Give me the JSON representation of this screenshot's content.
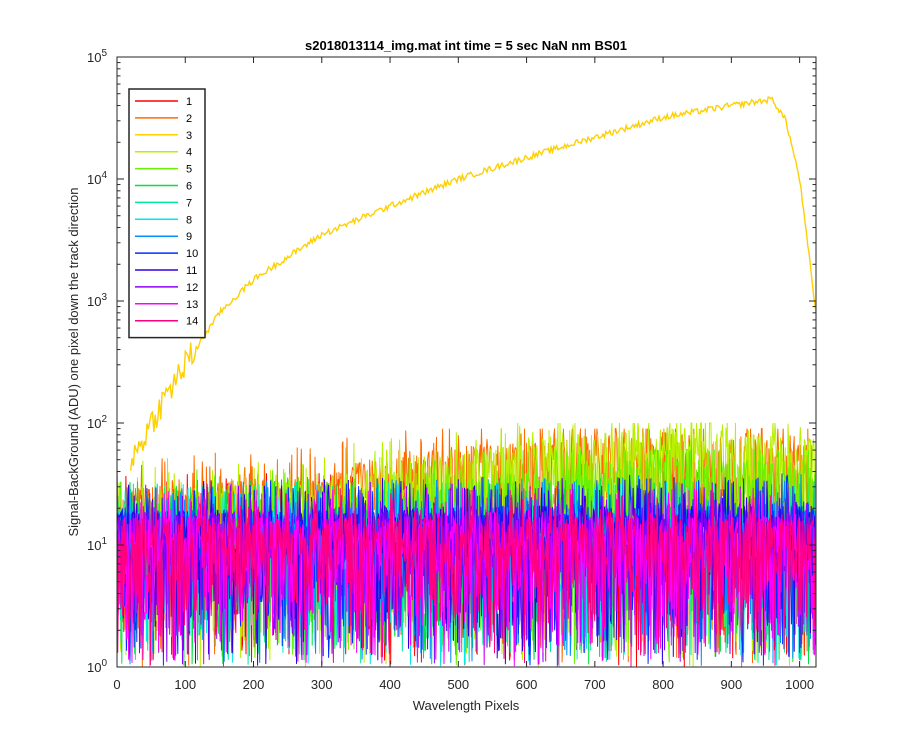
{
  "chart_data": {
    "type": "line",
    "title": "s2018013114_img.mat int time = 5 sec  NaN nm BS01",
    "xlabel": "Wavelength Pixels",
    "ylabel": "Signal-BackGround (ADU) one pixel down the track direction",
    "xlim": [
      0,
      1024
    ],
    "ylim": [
      1,
      100000
    ],
    "yscale": "log",
    "grid": false,
    "legend_position": "top-left",
    "x_ticks": [
      0,
      100,
      200,
      300,
      400,
      500,
      600,
      700,
      800,
      900,
      1000
    ],
    "y_ticks": [
      {
        "value": 1,
        "base": "10",
        "exp": "0"
      },
      {
        "value": 10,
        "base": "10",
        "exp": "1"
      },
      {
        "value": 100,
        "base": "10",
        "exp": "2"
      },
      {
        "value": 1000,
        "base": "10",
        "exp": "3"
      },
      {
        "value": 10000,
        "base": "10",
        "exp": "4"
      },
      {
        "value": 100000,
        "base": "10",
        "exp": "5"
      }
    ],
    "series": [
      {
        "name": "1",
        "color": "#ff0000",
        "noise": {
          "baseline": [
            [
              0,
              12
            ],
            [
              1024,
              12
            ]
          ],
          "max": 40
        }
      },
      {
        "name": "2",
        "color": "#ff6a00",
        "noise": {
          "baseline": [
            [
              0,
              15
            ],
            [
              300,
              20
            ],
            [
              400,
              30
            ],
            [
              800,
              45
            ],
            [
              1000,
              38
            ],
            [
              1024,
              35
            ]
          ],
          "max": 90
        }
      },
      {
        "name": "3",
        "color": "#ffd000",
        "x": [
          20,
          30,
          50,
          80,
          100,
          150,
          200,
          300,
          400,
          500,
          600,
          700,
          800,
          900,
          960,
          980,
          1000,
          1024
        ],
        "y": [
          50,
          60,
          100,
          200,
          300,
          800,
          1500,
          3500,
          6000,
          10000,
          15000,
          22000,
          32000,
          40000,
          45000,
          30000,
          10000,
          800
        ]
      },
      {
        "name": "4",
        "color": "#b8f000",
        "noise": {
          "baseline": [
            [
              0,
              15
            ],
            [
              300,
              18
            ],
            [
              400,
              25
            ],
            [
              800,
              50
            ],
            [
              1000,
              40
            ],
            [
              1024,
              40
            ]
          ],
          "max": 100
        }
      },
      {
        "name": "5",
        "color": "#6af000",
        "noise": {
          "baseline": [
            [
              0,
              12
            ],
            [
              400,
              15
            ],
            [
              800,
              28
            ],
            [
              1024,
              25
            ]
          ],
          "max": 60
        }
      },
      {
        "name": "6",
        "color": "#00e040",
        "noise": {
          "baseline": [
            [
              0,
              10
            ],
            [
              1024,
              12
            ]
          ],
          "max": 40
        }
      },
      {
        "name": "7",
        "color": "#00e8a0",
        "noise": {
          "baseline": [
            [
              0,
              10
            ],
            [
              1024,
              10
            ]
          ],
          "max": 40
        }
      },
      {
        "name": "8",
        "color": "#00e8e8",
        "noise": {
          "baseline": [
            [
              0,
              10
            ],
            [
              1024,
              10
            ]
          ],
          "max": 40
        }
      },
      {
        "name": "9",
        "color": "#0090ff",
        "noise": {
          "baseline": [
            [
              0,
              10
            ],
            [
              1024,
              12
            ]
          ],
          "max": 40
        }
      },
      {
        "name": "10",
        "color": "#0030ff",
        "noise": {
          "baseline": [
            [
              0,
              10
            ],
            [
              1024,
              12
            ]
          ],
          "max": 45
        }
      },
      {
        "name": "11",
        "color": "#3000e0",
        "noise": {
          "baseline": [
            [
              0,
              10
            ],
            [
              1024,
              12
            ]
          ],
          "max": 45
        }
      },
      {
        "name": "12",
        "color": "#9000ff",
        "noise": {
          "baseline": [
            [
              0,
              10
            ],
            [
              1024,
              10
            ]
          ],
          "max": 40
        }
      },
      {
        "name": "13",
        "color": "#ff00ff",
        "noise": {
          "baseline": [
            [
              0,
              9
            ],
            [
              1024,
              9
            ]
          ],
          "max": 35
        }
      },
      {
        "name": "14",
        "color": "#ff0080",
        "noise": {
          "baseline": [
            [
              0,
              9
            ],
            [
              1024,
              9
            ]
          ],
          "max": 35
        }
      }
    ]
  }
}
